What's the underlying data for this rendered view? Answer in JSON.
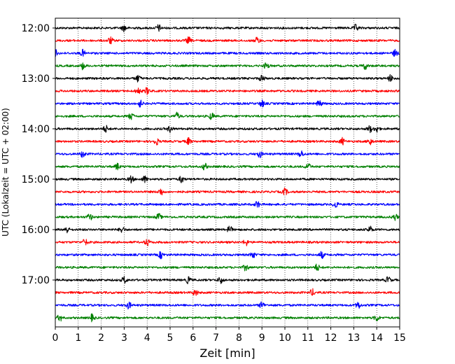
{
  "chart_data": {
    "type": "line",
    "title": "",
    "xlabel": "Zeit  [min]",
    "ylabel": "UTC (Lokalzeit = UTC + 02:00)",
    "xlim": [
      0,
      15
    ],
    "x_ticks": [
      "0",
      "1",
      "2",
      "3",
      "4",
      "5",
      "6",
      "7",
      "8",
      "9",
      "10",
      "11",
      "12",
      "13",
      "14",
      "15"
    ],
    "y_ticks": [
      "12:00",
      "13:00",
      "14:00",
      "15:00",
      "16:00",
      "17:00"
    ],
    "grid": "vertical dotted lines at each minute",
    "row_interval_minutes": 15,
    "trace_colors": [
      "#000000",
      "#ff0000",
      "#0000ff",
      "#008000"
    ],
    "rows": [
      {
        "start_utc": "12:00",
        "color": "#000000",
        "events_min": [
          3.0,
          4.5,
          13.1
        ]
      },
      {
        "start_utc": "12:15",
        "color": "#ff0000",
        "events_min": [
          2.4,
          5.8,
          8.8
        ]
      },
      {
        "start_utc": "12:30",
        "color": "#0000ff",
        "events_min": [
          0.0,
          1.2,
          14.8
        ]
      },
      {
        "start_utc": "12:45",
        "color": "#008000",
        "events_min": [
          1.2,
          9.2,
          13.5
        ]
      },
      {
        "start_utc": "13:00",
        "color": "#000000",
        "events_min": [
          3.6,
          9.0,
          14.6
        ]
      },
      {
        "start_utc": "13:15",
        "color": "#ff0000",
        "events_min": [
          3.6,
          4.0
        ]
      },
      {
        "start_utc": "13:30",
        "color": "#0000ff",
        "events_min": [
          3.7,
          9.0,
          11.5
        ]
      },
      {
        "start_utc": "13:45",
        "color": "#008000",
        "events_min": [
          3.3,
          5.3,
          6.8
        ]
      },
      {
        "start_utc": "14:00",
        "color": "#000000",
        "events_min": [
          2.2,
          5.0,
          13.7,
          14.0
        ]
      },
      {
        "start_utc": "14:15",
        "color": "#ff0000",
        "events_min": [
          4.4,
          5.8,
          12.5,
          13.7
        ]
      },
      {
        "start_utc": "14:30",
        "color": "#0000ff",
        "events_min": [
          1.2,
          8.9,
          10.7
        ]
      },
      {
        "start_utc": "14:45",
        "color": "#008000",
        "events_min": [
          2.7,
          6.5,
          11.0
        ]
      },
      {
        "start_utc": "15:00",
        "color": "#000000",
        "events_min": [
          3.3,
          3.9,
          5.5
        ]
      },
      {
        "start_utc": "15:15",
        "color": "#ff0000",
        "events_min": [
          4.6,
          10.0
        ]
      },
      {
        "start_utc": "15:30",
        "color": "#0000ff",
        "events_min": [
          8.8,
          12.2
        ]
      },
      {
        "start_utc": "15:45",
        "color": "#008000",
        "events_min": [
          1.5,
          4.5,
          14.8
        ]
      },
      {
        "start_utc": "16:00",
        "color": "#000000",
        "events_min": [
          0.5,
          2.9,
          7.6,
          13.7
        ]
      },
      {
        "start_utc": "16:15",
        "color": "#ff0000",
        "events_min": [
          1.3,
          4.0,
          8.3
        ]
      },
      {
        "start_utc": "16:30",
        "color": "#0000ff",
        "events_min": [
          4.6,
          8.6,
          11.6
        ]
      },
      {
        "start_utc": "16:45",
        "color": "#008000",
        "events_min": [
          8.3,
          11.4
        ]
      },
      {
        "start_utc": "17:00",
        "color": "#000000",
        "events_min": [
          3.0,
          5.8,
          7.2,
          14.5
        ]
      },
      {
        "start_utc": "17:15",
        "color": "#ff0000",
        "events_min": [
          6.1,
          11.2
        ]
      },
      {
        "start_utc": "17:30",
        "color": "#0000ff",
        "events_min": [
          3.2,
          9.0,
          13.2
        ]
      },
      {
        "start_utc": "17:45",
        "color": "#008000",
        "events_min": [
          0.2,
          1.6,
          14.0
        ]
      }
    ]
  }
}
